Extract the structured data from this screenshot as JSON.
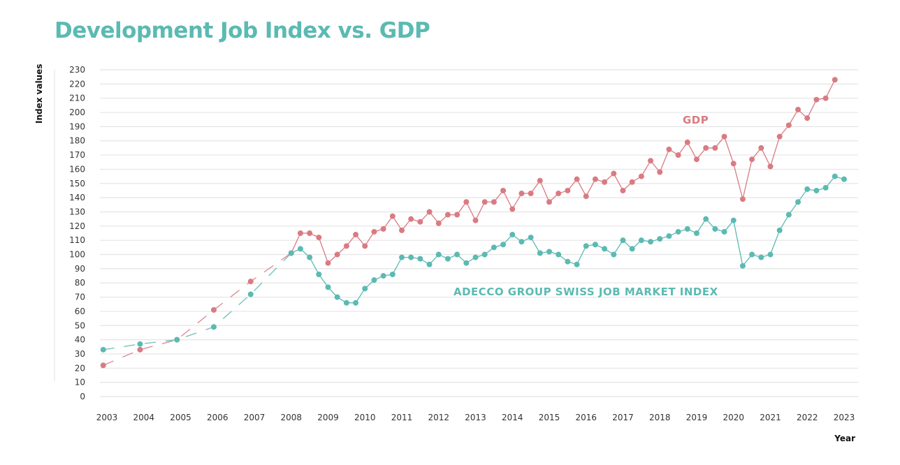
{
  "chart_data": {
    "type": "line",
    "title": "Development Job Index vs. GDP",
    "xlabel": "Year",
    "ylabel": "Index values",
    "ylim": [
      0,
      230
    ],
    "yticks": [
      0,
      10,
      20,
      30,
      40,
      50,
      60,
      70,
      80,
      90,
      100,
      110,
      120,
      130,
      140,
      150,
      160,
      170,
      180,
      190,
      200,
      210,
      220,
      230
    ],
    "xticks": [
      2003,
      2004,
      2005,
      2006,
      2007,
      2008,
      2009,
      2010,
      2011,
      2012,
      2013,
      2014,
      2015,
      2016,
      2017,
      2018,
      2019,
      2020,
      2021,
      2022,
      2023
    ],
    "grid": true,
    "annual_x": [
      2002.9,
      2003.9,
      2004.9,
      2005.9,
      2006.9
    ],
    "quarterly_start": 2008.0,
    "quarterly_step": 0.25,
    "series": [
      {
        "name": "GDP",
        "color": "#d97b82",
        "annual": [
          22,
          33,
          40,
          61,
          81
        ],
        "quarterly": [
          101,
          115,
          115,
          112,
          94,
          100,
          106,
          114,
          106,
          116,
          118,
          127,
          117,
          125,
          123,
          130,
          122,
          128,
          128,
          137,
          124,
          137,
          137,
          145,
          132,
          143,
          143,
          152,
          137,
          143,
          145,
          153,
          141,
          153,
          151,
          157,
          145,
          151,
          155,
          166,
          158,
          174,
          170,
          179,
          167,
          175,
          175,
          183,
          164,
          139,
          167,
          175,
          162,
          183,
          191,
          202,
          196,
          209,
          210,
          223
        ]
      },
      {
        "name": "ADECCO GROUP SWISS JOB MARKET INDEX",
        "color": "#5bbab2",
        "annual": [
          33,
          37,
          40,
          49,
          72
        ],
        "quarterly": [
          101,
          104,
          98,
          86,
          77,
          70,
          66,
          66,
          76,
          82,
          85,
          86,
          98,
          98,
          97,
          93,
          100,
          97,
          100,
          94,
          98,
          100,
          105,
          107,
          114,
          109,
          112,
          101,
          102,
          100,
          95,
          93,
          106,
          107,
          104,
          100,
          110,
          104,
          110,
          109,
          111,
          113,
          116,
          118,
          115,
          125,
          118,
          116,
          124,
          92,
          100,
          98,
          100,
          117,
          128,
          137,
          146,
          145,
          147,
          155,
          153
        ]
      }
    ]
  }
}
